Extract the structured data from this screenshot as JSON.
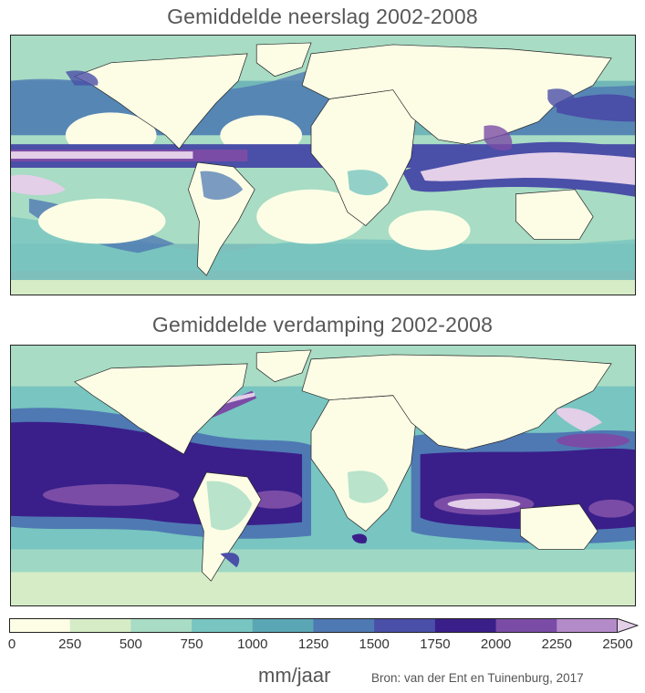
{
  "maps": [
    {
      "title": "Gemiddelde neerslag 2002-2008"
    },
    {
      "title": "Gemiddelde verdamping 2002-2008"
    }
  ],
  "legend": {
    "ticks": [
      "0",
      "250",
      "500",
      "750",
      "1000",
      "1250",
      "1500",
      "1750",
      "2000",
      "2250",
      "2500"
    ],
    "colors": [
      "#fdfde6",
      "#d6ecc7",
      "#a8dcc4",
      "#78c5c1",
      "#5ba6b4",
      "#4f79b3",
      "#4a4fa8",
      "#3a1f8a",
      "#7a4ca6",
      "#b48bc9",
      "#e3cfe8"
    ],
    "unit": "mm/jaar"
  },
  "source": "Bron: van der Ent en Tuinenburg, 2017"
}
